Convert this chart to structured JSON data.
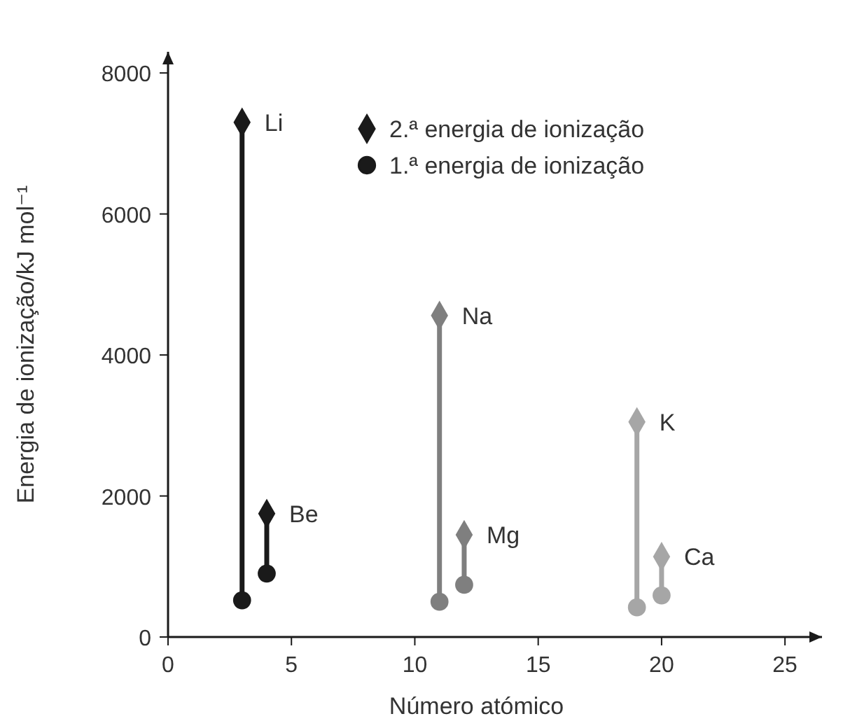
{
  "chart_data": {
    "type": "scatter",
    "xlabel": "Número atómico",
    "ylabel": "Energia de ionização/kJ mol⁻¹",
    "xlim": [
      0,
      26.5
    ],
    "ylim": [
      0,
      8300
    ],
    "xticks": [
      0,
      5,
      10,
      15,
      20,
      25
    ],
    "yticks": [
      0,
      2000,
      4000,
      6000,
      8000
    ],
    "grid": false,
    "legend": "top",
    "series": [
      {
        "type": "line",
        "x": [
          3,
          3
        ],
        "values": [
          520,
          7300
        ],
        "color": "#1a1a1a",
        "marker": "none"
      },
      {
        "type": "line",
        "x": [
          4,
          4
        ],
        "values": [
          900,
          1750
        ],
        "color": "#1a1a1a",
        "marker": "none"
      },
      {
        "type": "line",
        "x": [
          11,
          11
        ],
        "values": [
          500,
          4560
        ],
        "color": "#7f7f7f",
        "marker": "none"
      },
      {
        "type": "line",
        "x": [
          12,
          12
        ],
        "values": [
          740,
          1450
        ],
        "color": "#7f7f7f",
        "marker": "none"
      },
      {
        "type": "line",
        "x": [
          19,
          19
        ],
        "values": [
          420,
          3050
        ],
        "color": "#a6a6a6",
        "marker": "none"
      },
      {
        "type": "line",
        "x": [
          20,
          20
        ],
        "values": [
          590,
          1140
        ],
        "color": "#a6a6a6",
        "marker": "none"
      },
      {
        "name": "2.ª energia de ionização",
        "marker": "diamond",
        "color": "#1a1a1a",
        "x": [
          3,
          4,
          11,
          12,
          19,
          20
        ],
        "values": [
          7300,
          1750,
          4560,
          1450,
          3050,
          1140
        ],
        "colors": [
          "#1a1a1a",
          "#1a1a1a",
          "#7f7f7f",
          "#7f7f7f",
          "#a6a6a6",
          "#a6a6a6"
        ]
      },
      {
        "name": "1.ª energia de ionização",
        "marker": "circle",
        "color": "#1a1a1a",
        "x": [
          3,
          4,
          11,
          12,
          19,
          20
        ],
        "values": [
          520,
          900,
          500,
          740,
          420,
          590
        ],
        "colors": [
          "#1a1a1a",
          "#1a1a1a",
          "#7f7f7f",
          "#7f7f7f",
          "#a6a6a6",
          "#a6a6a6"
        ]
      }
    ],
    "annotations": [
      {
        "text": "Li",
        "x": 3,
        "y": 7300
      },
      {
        "text": "Be",
        "x": 4,
        "y": 1750
      },
      {
        "text": "Na",
        "x": 11,
        "y": 4560
      },
      {
        "text": "Mg",
        "x": 12,
        "y": 1450
      },
      {
        "text": "K",
        "x": 19,
        "y": 3050
      },
      {
        "text": "Ca",
        "x": 20,
        "y": 1140
      }
    ]
  }
}
